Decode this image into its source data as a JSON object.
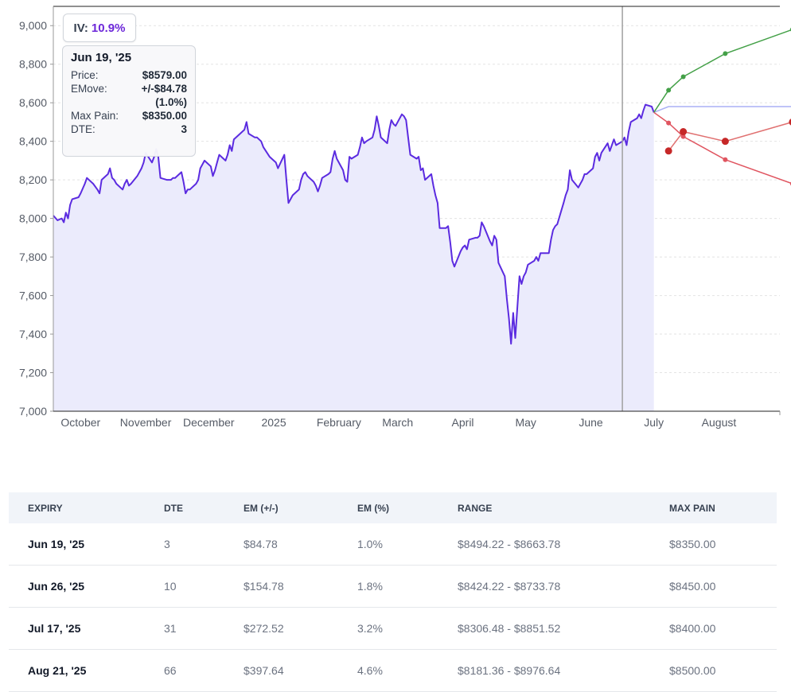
{
  "chart_data": {
    "type": "line",
    "ylim": [
      7000,
      9100
    ],
    "yticks": [
      "7,000",
      "7,200",
      "7,400",
      "7,600",
      "7,800",
      "8,000",
      "8,200",
      "8,400",
      "8,600",
      "8,800",
      "9,000"
    ],
    "ytick_values": [
      7000,
      7200,
      7400,
      7600,
      7800,
      8000,
      8200,
      8400,
      8600,
      8800,
      9000
    ],
    "xlim": [
      "2024-09-18",
      "2025-08-30"
    ],
    "xticks": [
      {
        "label": "October",
        "date": "2024-10-01"
      },
      {
        "label": "November",
        "date": "2024-11-01"
      },
      {
        "label": "December",
        "date": "2024-12-01"
      },
      {
        "label": "2025",
        "date": "2025-01-01"
      },
      {
        "label": "February",
        "date": "2025-02-01"
      },
      {
        "label": "March",
        "date": "2025-03-01"
      },
      {
        "label": "April",
        "date": "2025-04-01"
      },
      {
        "label": "May",
        "date": "2025-05-01"
      },
      {
        "label": "June",
        "date": "2025-06-01"
      },
      {
        "label": "July",
        "date": "2025-07-01"
      },
      {
        "label": "August",
        "date": "2025-08-01"
      }
    ],
    "current_date": "2025-06-16",
    "price_series": {
      "color": "#5b2be0",
      "fill": "#ebebfc",
      "points": [
        [
          "2024-09-18",
          8015
        ],
        [
          "2024-09-20",
          7990
        ],
        [
          "2024-09-22",
          8000
        ],
        [
          "2024-09-23",
          7980
        ],
        [
          "2024-09-24",
          8030
        ],
        [
          "2024-09-25",
          8000
        ],
        [
          "2024-09-26",
          8070
        ],
        [
          "2024-09-27",
          8100
        ],
        [
          "2024-09-30",
          8110
        ],
        [
          "2024-10-01",
          8130
        ],
        [
          "2024-10-03",
          8180
        ],
        [
          "2024-10-04",
          8210
        ],
        [
          "2024-10-07",
          8180
        ],
        [
          "2024-10-09",
          8150
        ],
        [
          "2024-10-10",
          8130
        ],
        [
          "2024-10-11",
          8200
        ],
        [
          "2024-10-14",
          8230
        ],
        [
          "2024-10-15",
          8260
        ],
        [
          "2024-10-16",
          8210
        ],
        [
          "2024-10-17",
          8200
        ],
        [
          "2024-10-18",
          8180
        ],
        [
          "2024-10-21",
          8150
        ],
        [
          "2024-10-22",
          8180
        ],
        [
          "2024-10-23",
          8200
        ],
        [
          "2024-10-24",
          8170
        ],
        [
          "2024-10-25",
          8180
        ],
        [
          "2024-10-28",
          8220
        ],
        [
          "2024-10-29",
          8240
        ],
        [
          "2024-10-30",
          8260
        ],
        [
          "2024-10-31",
          8290
        ],
        [
          "2024-11-01",
          8340
        ],
        [
          "2024-11-04",
          8290
        ],
        [
          "2024-11-05",
          8320
        ],
        [
          "2024-11-06",
          8360
        ],
        [
          "2024-11-07",
          8320
        ],
        [
          "2024-11-08",
          8210
        ],
        [
          "2024-11-11",
          8200
        ],
        [
          "2024-11-12",
          8200
        ],
        [
          "2024-11-13",
          8200
        ],
        [
          "2024-11-14",
          8210
        ],
        [
          "2024-11-15",
          8210
        ],
        [
          "2024-11-18",
          8240
        ],
        [
          "2024-11-19",
          8190
        ],
        [
          "2024-11-20",
          8130
        ],
        [
          "2024-11-21",
          8150
        ],
        [
          "2024-11-22",
          8150
        ],
        [
          "2024-11-25",
          8180
        ],
        [
          "2024-11-26",
          8200
        ],
        [
          "2024-11-27",
          8260
        ],
        [
          "2024-11-29",
          8300
        ],
        [
          "2024-12-02",
          8270
        ],
        [
          "2024-12-03",
          8220
        ],
        [
          "2024-12-04",
          8250
        ],
        [
          "2024-12-05",
          8290
        ],
        [
          "2024-12-06",
          8330
        ],
        [
          "2024-12-09",
          8300
        ],
        [
          "2024-12-10",
          8330
        ],
        [
          "2024-12-11",
          8380
        ],
        [
          "2024-12-12",
          8350
        ],
        [
          "2024-12-13",
          8410
        ],
        [
          "2024-12-16",
          8440
        ],
        [
          "2024-12-17",
          8450
        ],
        [
          "2024-12-18",
          8460
        ],
        [
          "2024-12-19",
          8500
        ],
        [
          "2024-12-20",
          8440
        ],
        [
          "2024-12-23",
          8420
        ],
        [
          "2024-12-24",
          8420
        ],
        [
          "2024-12-26",
          8400
        ],
        [
          "2024-12-27",
          8370
        ],
        [
          "2024-12-30",
          8320
        ],
        [
          "2025-01-02",
          8290
        ],
        [
          "2025-01-03",
          8260
        ],
        [
          "2025-01-06",
          8330
        ],
        [
          "2025-01-07",
          8200
        ],
        [
          "2025-01-08",
          8080
        ],
        [
          "2025-01-10",
          8120
        ],
        [
          "2025-01-13",
          8150
        ],
        [
          "2025-01-14",
          8200
        ],
        [
          "2025-01-15",
          8230
        ],
        [
          "2025-01-16",
          8240
        ],
        [
          "2025-01-17",
          8220
        ],
        [
          "2025-01-20",
          8190
        ],
        [
          "2025-01-21",
          8170
        ],
        [
          "2025-01-22",
          8140
        ],
        [
          "2025-01-23",
          8170
        ],
        [
          "2025-01-24",
          8210
        ],
        [
          "2025-01-27",
          8230
        ],
        [
          "2025-01-28",
          8240
        ],
        [
          "2025-01-29",
          8310
        ],
        [
          "2025-01-30",
          8350
        ],
        [
          "2025-01-31",
          8310
        ],
        [
          "2025-02-03",
          8250
        ],
        [
          "2025-02-04",
          8200
        ],
        [
          "2025-02-05",
          8190
        ],
        [
          "2025-02-06",
          8320
        ],
        [
          "2025-02-07",
          8310
        ],
        [
          "2025-02-10",
          8330
        ],
        [
          "2025-02-11",
          8370
        ],
        [
          "2025-02-12",
          8420
        ],
        [
          "2025-02-13",
          8390
        ],
        [
          "2025-02-14",
          8400
        ],
        [
          "2025-02-17",
          8420
        ],
        [
          "2025-02-18",
          8460
        ],
        [
          "2025-02-19",
          8530
        ],
        [
          "2025-02-20",
          8480
        ],
        [
          "2025-02-21",
          8420
        ],
        [
          "2025-02-24",
          8390
        ],
        [
          "2025-02-25",
          8460
        ],
        [
          "2025-02-26",
          8510
        ],
        [
          "2025-02-27",
          8490
        ],
        [
          "2025-02-28",
          8480
        ],
        [
          "2025-03-03",
          8540
        ],
        [
          "2025-03-04",
          8530
        ],
        [
          "2025-03-05",
          8510
        ],
        [
          "2025-03-06",
          8420
        ],
        [
          "2025-03-07",
          8330
        ],
        [
          "2025-03-10",
          8310
        ],
        [
          "2025-03-11",
          8320
        ],
        [
          "2025-03-12",
          8250
        ],
        [
          "2025-03-13",
          8260
        ],
        [
          "2025-03-14",
          8200
        ],
        [
          "2025-03-17",
          8230
        ],
        [
          "2025-03-18",
          8170
        ],
        [
          "2025-03-19",
          8120
        ],
        [
          "2025-03-20",
          8080
        ],
        [
          "2025-03-21",
          7950
        ],
        [
          "2025-03-24",
          7950
        ],
        [
          "2025-03-25",
          7960
        ],
        [
          "2025-03-26",
          7880
        ],
        [
          "2025-03-27",
          7780
        ],
        [
          "2025-03-28",
          7750
        ],
        [
          "2025-03-31",
          7830
        ],
        [
          "2025-04-01",
          7850
        ],
        [
          "2025-04-02",
          7860
        ],
        [
          "2025-04-03",
          7840
        ],
        [
          "2025-04-04",
          7890
        ],
        [
          "2025-04-07",
          7900
        ],
        [
          "2025-04-08",
          7900
        ],
        [
          "2025-04-09",
          7910
        ],
        [
          "2025-04-10",
          7980
        ],
        [
          "2025-04-11",
          7960
        ],
        [
          "2025-04-14",
          7880
        ],
        [
          "2025-04-15",
          7860
        ],
        [
          "2025-04-16",
          7910
        ],
        [
          "2025-04-17",
          7890
        ],
        [
          "2025-04-18",
          7770
        ],
        [
          "2025-04-21",
          7700
        ],
        [
          "2025-04-22",
          7580
        ],
        [
          "2025-04-23",
          7480
        ],
        [
          "2025-04-24",
          7350
        ],
        [
          "2025-04-25",
          7510
        ],
        [
          "2025-04-26",
          7380
        ],
        [
          "2025-04-28",
          7700
        ],
        [
          "2025-04-29",
          7660
        ],
        [
          "2025-04-30",
          7700
        ],
        [
          "2025-05-01",
          7720
        ],
        [
          "2025-05-02",
          7760
        ],
        [
          "2025-05-05",
          7780
        ],
        [
          "2025-05-06",
          7800
        ],
        [
          "2025-05-07",
          7780
        ],
        [
          "2025-05-08",
          7820
        ],
        [
          "2025-05-09",
          7820
        ],
        [
          "2025-05-12",
          7820
        ],
        [
          "2025-05-13",
          7890
        ],
        [
          "2025-05-14",
          7940
        ],
        [
          "2025-05-15",
          7960
        ],
        [
          "2025-05-16",
          7970
        ],
        [
          "2025-05-19",
          8080
        ],
        [
          "2025-05-20",
          8120
        ],
        [
          "2025-05-21",
          8150
        ],
        [
          "2025-05-22",
          8250
        ],
        [
          "2025-05-23",
          8200
        ],
        [
          "2025-05-26",
          8160
        ],
        [
          "2025-05-27",
          8180
        ],
        [
          "2025-05-28",
          8200
        ],
        [
          "2025-05-29",
          8230
        ],
        [
          "2025-05-30",
          8230
        ],
        [
          "2025-06-02",
          8260
        ],
        [
          "2025-06-03",
          8320
        ],
        [
          "2025-06-04",
          8340
        ],
        [
          "2025-06-05",
          8300
        ],
        [
          "2025-06-06",
          8340
        ],
        [
          "2025-06-09",
          8390
        ],
        [
          "2025-06-10",
          8350
        ],
        [
          "2025-06-11",
          8380
        ],
        [
          "2025-06-12",
          8410
        ],
        [
          "2025-06-13",
          8380
        ],
        [
          "2025-06-16",
          8400
        ],
        [
          "2025-06-17",
          8420
        ],
        [
          "2025-06-18",
          8380
        ],
        [
          "2025-06-19",
          8450
        ],
        [
          "2025-06-20",
          8500
        ],
        [
          "2025-06-23",
          8520
        ],
        [
          "2025-06-24",
          8540
        ],
        [
          "2025-06-25",
          8520
        ],
        [
          "2025-06-26",
          8560
        ],
        [
          "2025-06-27",
          8590
        ],
        [
          "2025-06-30",
          8580
        ],
        [
          "2025-07-01",
          8550
        ]
      ]
    },
    "projection": {
      "start": [
        "2025-07-01",
        8550
      ],
      "upper": {
        "color": "#43a047",
        "points": [
          [
            "2025-07-08",
            8665
          ],
          [
            "2025-07-15",
            8735
          ],
          [
            "2025-08-04",
            8855
          ],
          [
            "2025-09-05",
            8980
          ]
        ]
      },
      "lower": {
        "color": "#e05560",
        "points": [
          [
            "2025-07-08",
            8495
          ],
          [
            "2025-07-15",
            8425
          ],
          [
            "2025-08-04",
            8305
          ],
          [
            "2025-09-05",
            8180
          ]
        ]
      },
      "mid": {
        "color": "#aab0f5",
        "points": [
          [
            "2025-07-08",
            8580
          ],
          [
            "2025-09-05",
            8580
          ]
        ]
      },
      "max_pain": {
        "color": "#c62828",
        "line_color": "#e07070",
        "points": [
          [
            "2025-07-08",
            8350
          ],
          [
            "2025-07-15",
            8450
          ],
          [
            "2025-08-04",
            8400
          ],
          [
            "2025-09-05",
            8500
          ]
        ]
      }
    }
  },
  "iv_badge": {
    "label": "IV:",
    "value": "10.9%"
  },
  "tooltip": {
    "date": "Jun 19, '25",
    "price_label": "Price:",
    "price_value": "$8579.00",
    "emove_label": "EMove:",
    "emove_value": "+/-$84.78",
    "emove_pct": "(1.0%)",
    "maxpain_label": "Max Pain:",
    "maxpain_value": "$8350.00",
    "dte_label": "DTE:",
    "dte_value": "3"
  },
  "table": {
    "headers": [
      "EXPIRY",
      "DTE",
      "EM (+/-)",
      "EM (%)",
      "RANGE",
      "MAX PAIN"
    ],
    "rows": [
      [
        "Jun 19, '25",
        "3",
        "$84.78",
        "1.0%",
        "$8494.22 - $8663.78",
        "$8350.00"
      ],
      [
        "Jun 26, '25",
        "10",
        "$154.78",
        "1.8%",
        "$8424.22 - $8733.78",
        "$8450.00"
      ],
      [
        "Jul 17, '25",
        "31",
        "$272.52",
        "3.2%",
        "$8306.48 - $8851.52",
        "$8400.00"
      ],
      [
        "Aug 21, '25",
        "66",
        "$397.64",
        "4.6%",
        "$8181.36 - $8976.64",
        "$8500.00"
      ]
    ]
  }
}
